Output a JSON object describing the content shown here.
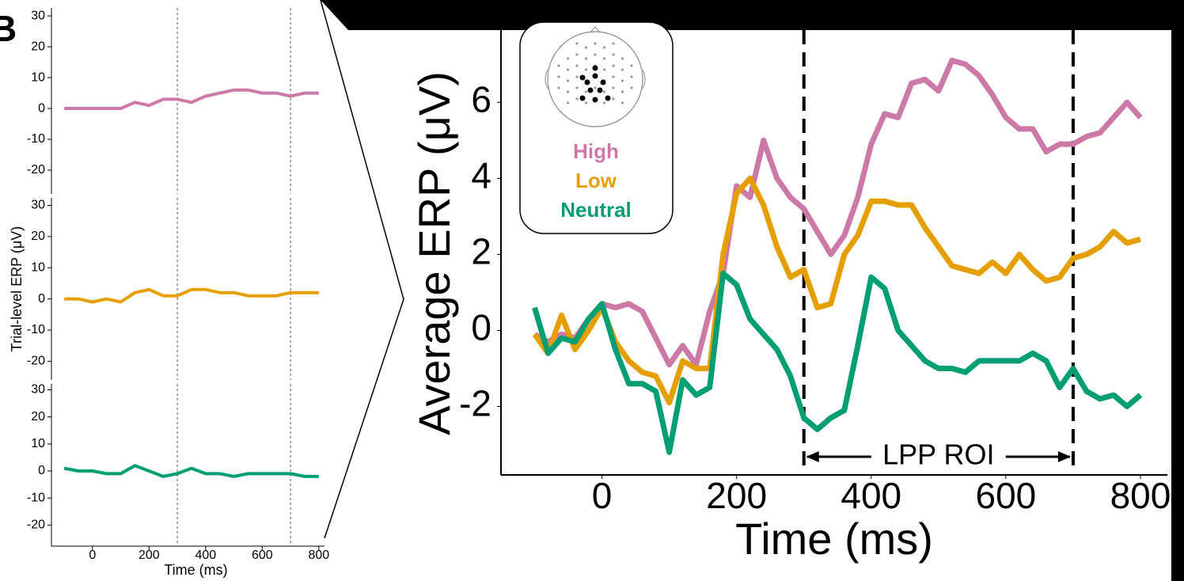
{
  "panel_label": "B",
  "chart_data": [
    {
      "type": "line",
      "x_label": "Time (ms)",
      "y_label": "Average ERP (μV)",
      "annotation": "LPP ROI",
      "xlim": [
        -150,
        840
      ],
      "ylim": [
        -3.8,
        7.9
      ],
      "xticks": [
        0,
        200,
        400,
        600,
        800
      ],
      "yticks": [
        -2,
        0,
        2,
        4,
        6
      ],
      "vlines": [
        300,
        700
      ],
      "x": [
        -100,
        -80,
        -60,
        -40,
        -20,
        0,
        20,
        40,
        60,
        80,
        100,
        120,
        140,
        160,
        180,
        200,
        220,
        240,
        260,
        280,
        300,
        320,
        340,
        360,
        380,
        400,
        420,
        440,
        460,
        480,
        500,
        520,
        540,
        560,
        580,
        600,
        620,
        640,
        660,
        680,
        700,
        720,
        740,
        760,
        780,
        800
      ],
      "series": [
        {
          "name": "High",
          "color": "#cc79a7",
          "values": [
            -0.1,
            -0.3,
            -0.1,
            -0.2,
            0.3,
            0.7,
            0.6,
            0.7,
            0.5,
            -0.2,
            -0.9,
            -0.4,
            -0.9,
            0.5,
            1.5,
            3.8,
            3.5,
            5.0,
            4.0,
            3.5,
            3.2,
            2.6,
            2.0,
            2.5,
            3.5,
            4.9,
            5.7,
            5.6,
            6.5,
            6.6,
            6.3,
            7.1,
            7.0,
            6.7,
            6.2,
            5.6,
            5.3,
            5.3,
            4.7,
            4.9,
            4.9,
            5.1,
            5.2,
            5.6,
            6.0,
            5.6
          ]
        },
        {
          "name": "Low",
          "color": "#e69f00",
          "values": [
            -0.1,
            -0.6,
            0.4,
            -0.5,
            0.0,
            0.6,
            -0.3,
            -0.8,
            -1.1,
            -1.2,
            -1.9,
            -0.8,
            -1.0,
            -1.0,
            2.0,
            3.6,
            4.0,
            3.3,
            2.2,
            1.4,
            1.6,
            0.6,
            0.7,
            2.0,
            2.5,
            3.4,
            3.4,
            3.3,
            3.3,
            2.7,
            2.2,
            1.7,
            1.6,
            1.5,
            1.8,
            1.5,
            2.0,
            1.6,
            1.3,
            1.4,
            1.9,
            2.0,
            2.2,
            2.6,
            2.3,
            2.4
          ]
        },
        {
          "name": "Neutral",
          "color": "#009e73",
          "values": [
            0.6,
            -0.6,
            -0.2,
            -0.3,
            0.3,
            0.7,
            -0.5,
            -1.4,
            -1.4,
            -1.6,
            -3.2,
            -1.3,
            -1.7,
            -1.5,
            1.5,
            1.2,
            0.3,
            -0.1,
            -0.5,
            -1.2,
            -2.3,
            -2.6,
            -2.3,
            -2.1,
            -0.4,
            1.4,
            1.1,
            0.0,
            -0.4,
            -0.8,
            -1.0,
            -1.0,
            -1.1,
            -0.8,
            -0.8,
            -0.8,
            -0.8,
            -0.6,
            -0.8,
            -1.5,
            -1.0,
            -1.6,
            -1.8,
            -1.7,
            -2.0,
            -1.7
          ]
        }
      ]
    },
    {
      "type": "line",
      "xlim": [
        -145,
        820
      ],
      "ylim": [
        -27.7,
        32.6
      ],
      "yticks": [
        -20,
        -10,
        0,
        10,
        20,
        30
      ],
      "vlines": [
        300,
        700
      ],
      "color": "#cc79a7",
      "x": [
        -100,
        -50,
        0,
        50,
        100,
        150,
        200,
        250,
        300,
        350,
        400,
        450,
        500,
        550,
        600,
        650,
        700,
        750,
        800
      ],
      "values": [
        0,
        0,
        0,
        0,
        0,
        2,
        1,
        3,
        3,
        2,
        4,
        5,
        6,
        6,
        5,
        5,
        4,
        5,
        5
      ]
    },
    {
      "type": "line",
      "y_label": "Trial-level ERP (μV)",
      "xlim": [
        -145,
        820
      ],
      "ylim": [
        -26,
        32.4
      ],
      "yticks": [
        -20,
        -10,
        0,
        10,
        20,
        30
      ],
      "vlines": [
        300,
        700
      ],
      "color": "#e69f00",
      "x": [
        -100,
        -50,
        0,
        50,
        100,
        150,
        200,
        250,
        300,
        350,
        400,
        450,
        500,
        550,
        600,
        650,
        700,
        750,
        800
      ],
      "values": [
        0,
        0,
        -1,
        0,
        -1,
        2,
        3,
        1,
        1,
        3,
        3,
        2,
        2,
        1,
        1,
        1,
        2,
        2,
        2
      ]
    },
    {
      "type": "line",
      "x_label": "Time (ms)",
      "xlim": [
        -145,
        820
      ],
      "ylim": [
        -27.8,
        32.2
      ],
      "xticks": [
        0,
        200,
        400,
        600,
        800
      ],
      "yticks": [
        -20,
        -10,
        0,
        10,
        20,
        30
      ],
      "vlines": [
        300,
        700
      ],
      "color": "#009e73",
      "x": [
        -100,
        -50,
        0,
        50,
        100,
        150,
        200,
        250,
        300,
        350,
        400,
        450,
        500,
        550,
        600,
        650,
        700,
        750,
        800
      ],
      "values": [
        1,
        0,
        0,
        -1,
        -1,
        2,
        0,
        -2,
        -1,
        1,
        -1,
        -1,
        -2,
        -1,
        -1,
        -1,
        -1,
        -2,
        -2
      ]
    }
  ]
}
